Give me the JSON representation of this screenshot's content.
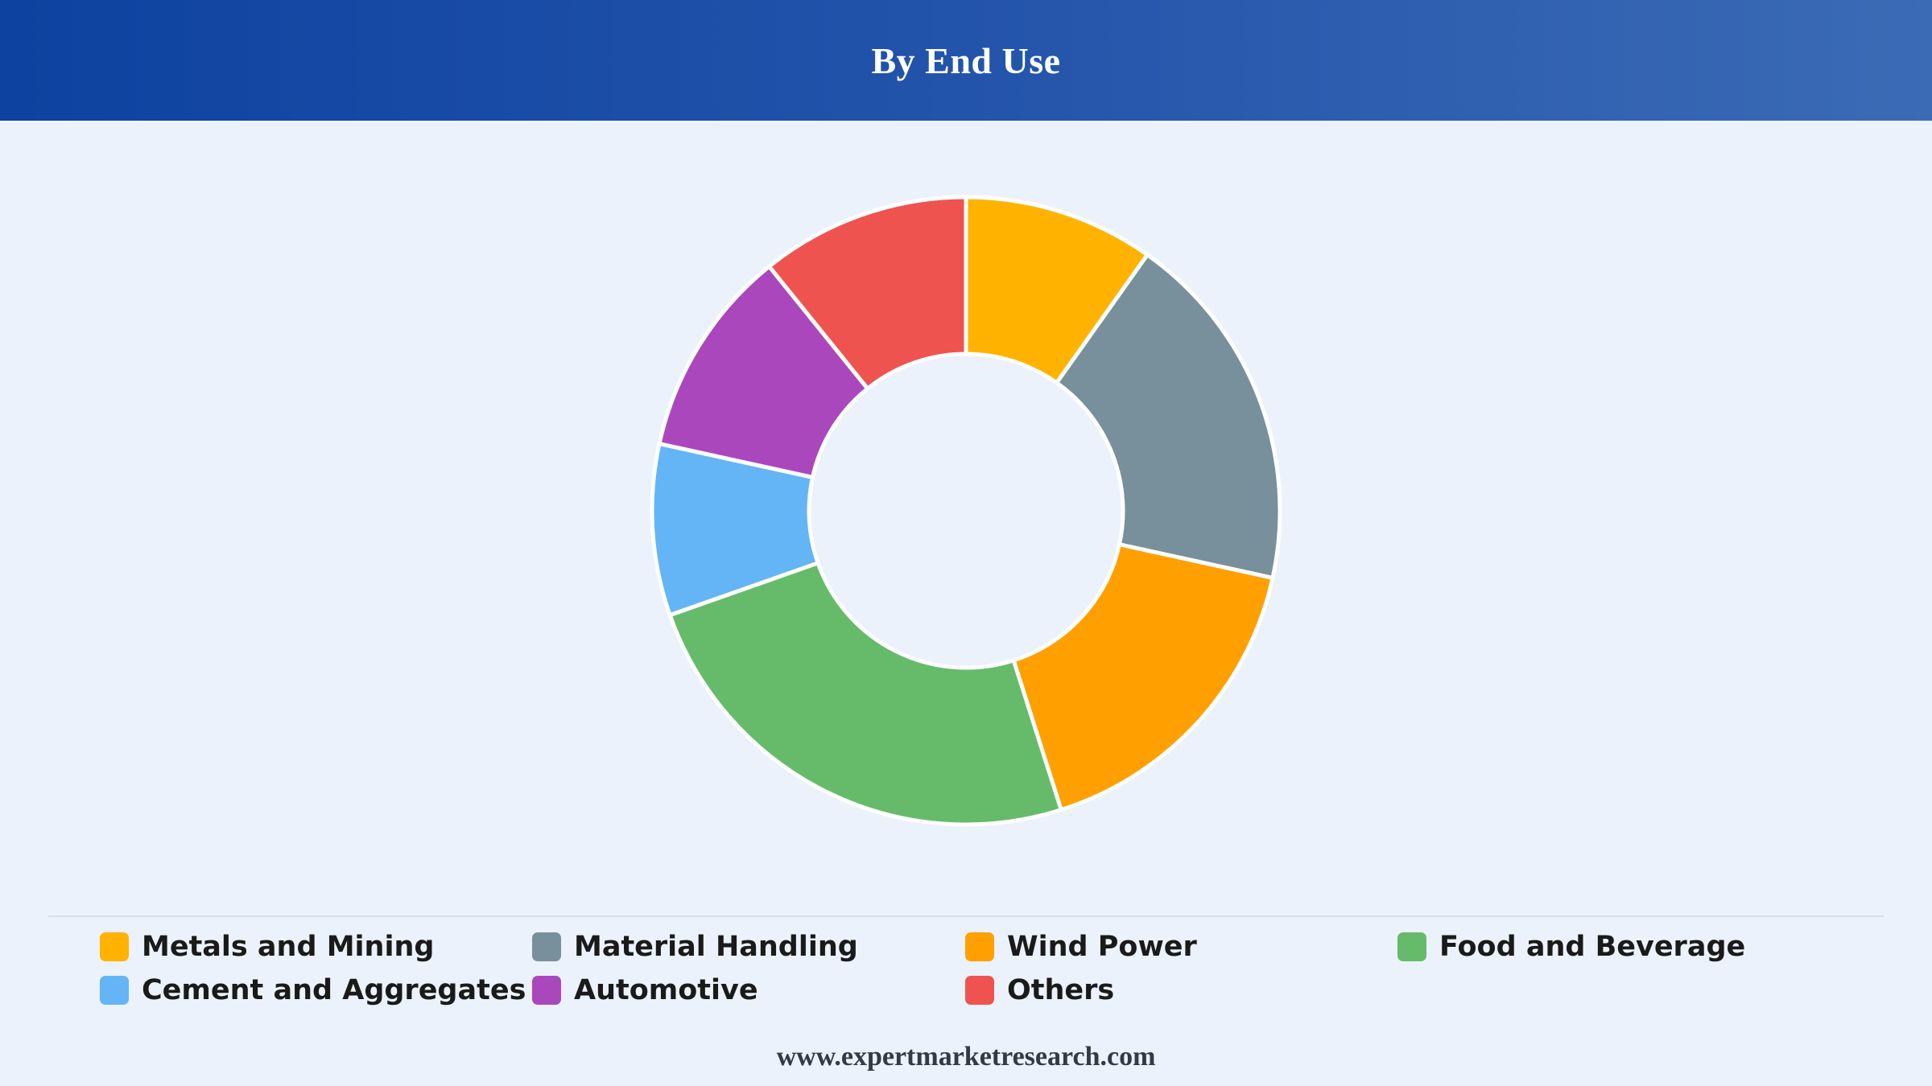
{
  "header": {
    "title": "By End Use"
  },
  "chart_data": {
    "type": "pie",
    "donut": true,
    "title": "By End Use",
    "categories": [
      "Metals and Mining",
      "Material Handling",
      "Wind Power",
      "Food and Beverage",
      "Cement and Aggregates",
      "Automotive",
      "Others"
    ],
    "values": [
      10,
      19,
      17,
      25,
      9,
      11,
      11
    ],
    "colors": [
      "#FFB300",
      "#78909C",
      "#FFA000",
      "#66BB6A",
      "#64B5F6",
      "#AB47BC",
      "#EF5350"
    ],
    "legend_position": "bottom"
  },
  "footer": {
    "website": "www.expertmarketresearch.com"
  }
}
